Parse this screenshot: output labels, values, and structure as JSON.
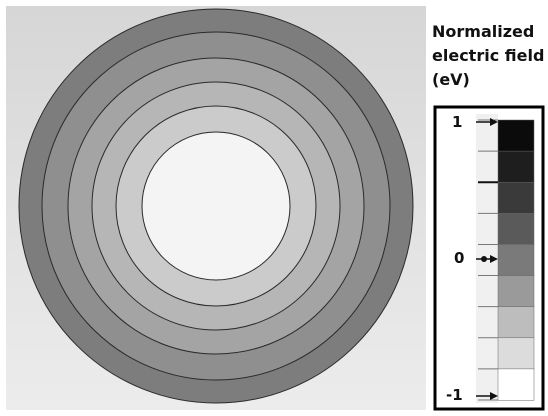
{
  "legend": {
    "title_lines": [
      "Normalized",
      "electric field",
      "(eV)"
    ],
    "tick_labels": [
      "1",
      "0",
      "-1"
    ],
    "swatches": [
      "#0b0b0b",
      "#1e1e1e",
      "#3a3a3a",
      "#5a5a5a",
      "#7a7a7a",
      "#9a9a9a",
      "#bdbdbd",
      "#dcdcdc",
      "#ffffff"
    ]
  },
  "rings": {
    "colors": [
      "#7d7d7d",
      "#8f8f8f",
      "#a4a4a4",
      "#b6b6b6",
      "#cbcbcb",
      "#f4f4f4"
    ]
  }
}
